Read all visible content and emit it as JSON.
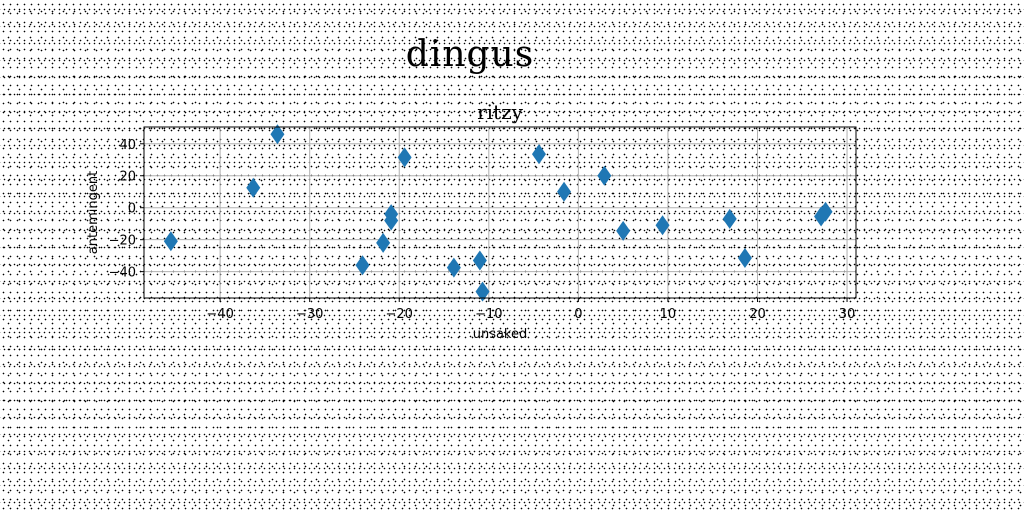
{
  "figure": {
    "title": "dingus"
  },
  "chart_data": {
    "type": "scatter",
    "title": "ritzy",
    "xlabel": "unsaked",
    "ylabel": "antemingent",
    "xlim": [
      -48.5,
      31
    ],
    "ylim": [
      -56.5,
      50.5
    ],
    "xticks": [
      -40,
      -30,
      -20,
      -10,
      0,
      10,
      20,
      30
    ],
    "yticks": [
      -40,
      -20,
      0,
      20,
      40
    ],
    "grid": true,
    "marker": "diamond",
    "color": "#1f77b4",
    "points": [
      {
        "x": -45.5,
        "y": -21
      },
      {
        "x": -36.3,
        "y": 12.5
      },
      {
        "x": -33.6,
        "y": 46
      },
      {
        "x": -24.1,
        "y": -36
      },
      {
        "x": -21.8,
        "y": -22
      },
      {
        "x": -20.9,
        "y": -4
      },
      {
        "x": -20.9,
        "y": -8
      },
      {
        "x": -19.4,
        "y": 31.5
      },
      {
        "x": -13.9,
        "y": -37.5
      },
      {
        "x": -11.0,
        "y": -33
      },
      {
        "x": -10.7,
        "y": -52.5
      },
      {
        "x": -4.4,
        "y": 33.5
      },
      {
        "x": -1.6,
        "y": 10
      },
      {
        "x": 2.9,
        "y": 20
      },
      {
        "x": 5.0,
        "y": -14.5
      },
      {
        "x": 9.4,
        "y": -11
      },
      {
        "x": 16.9,
        "y": -7
      },
      {
        "x": 18.6,
        "y": -31.5
      },
      {
        "x": 27.1,
        "y": -5.5
      },
      {
        "x": 27.6,
        "y": -2.5
      }
    ]
  }
}
